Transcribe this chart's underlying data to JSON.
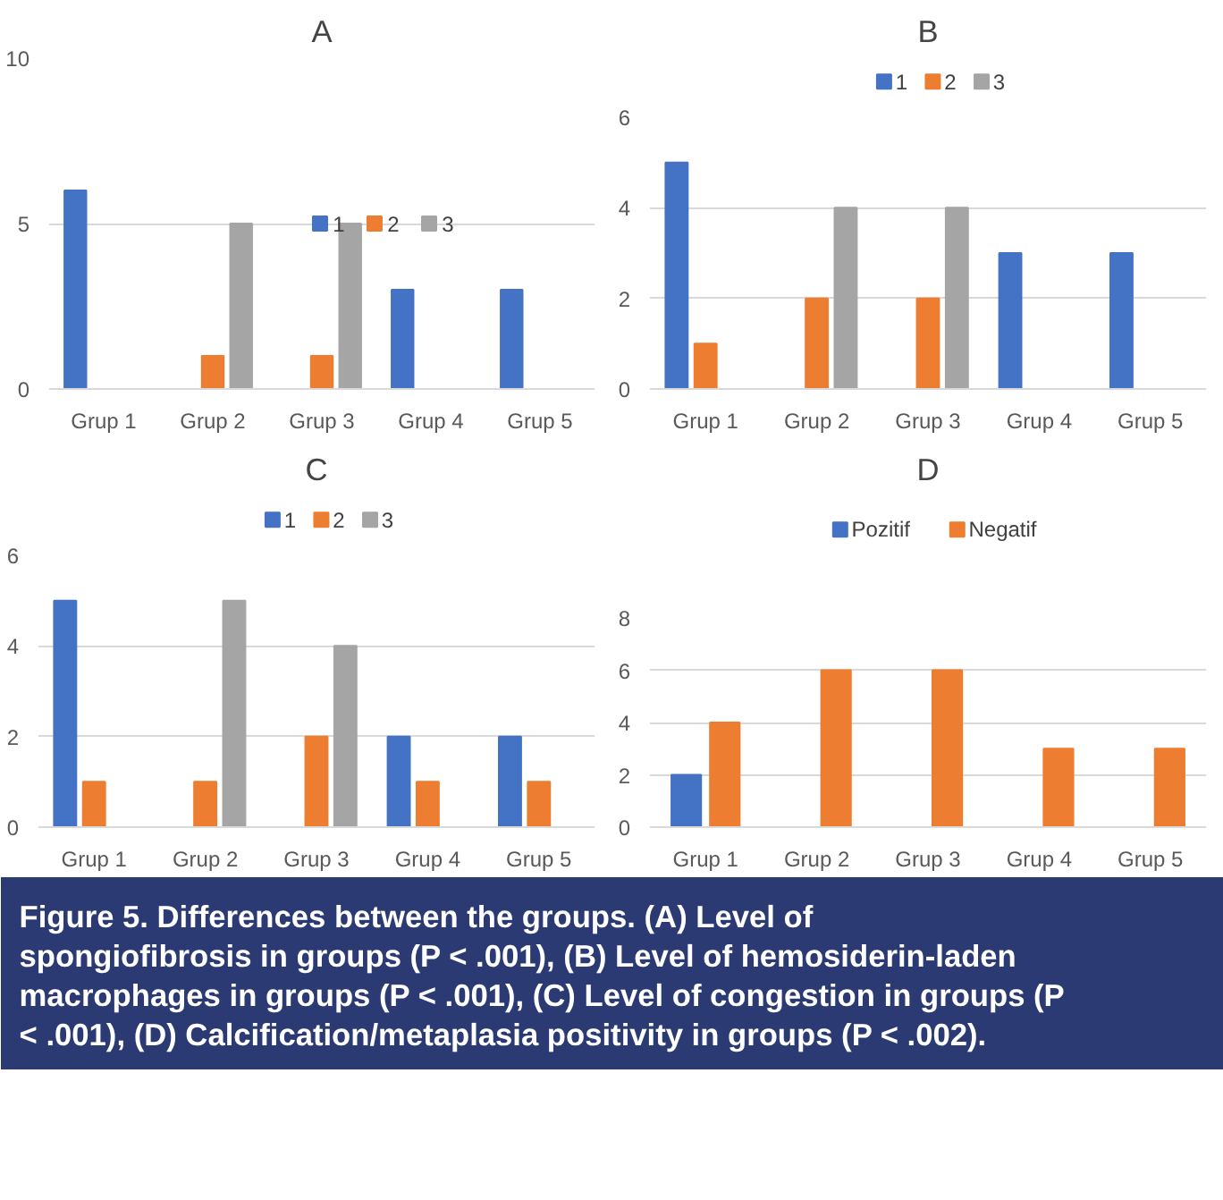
{
  "chart_data": [
    {
      "type": "bar",
      "title": "A",
      "categories": [
        "Grup 1",
        "Grup 2",
        "Grup 3",
        "Grup 4",
        "Grup 5"
      ],
      "ylim": [
        0,
        10
      ],
      "yticks": [
        0,
        5,
        10
      ],
      "grid": "y",
      "legend": "center",
      "series": [
        {
          "name": "1",
          "color": "#4472c4",
          "values": [
            6,
            0,
            0,
            3,
            3
          ]
        },
        {
          "name": "2",
          "color": "#ed7d31",
          "values": [
            0,
            1,
            1,
            0,
            0
          ]
        },
        {
          "name": "3",
          "color": "#a5a5a5",
          "values": [
            0,
            5,
            5,
            0,
            0
          ]
        }
      ]
    },
    {
      "type": "bar",
      "title": "B",
      "categories": [
        "Grup 1",
        "Grup 2",
        "Grup 3",
        "Grup 4",
        "Grup 5"
      ],
      "ylim": [
        0,
        6
      ],
      "yticks": [
        0,
        2,
        4,
        6
      ],
      "grid": "y",
      "legend": "top",
      "series": [
        {
          "name": "1",
          "color": "#4472c4",
          "values": [
            5,
            0,
            0,
            3,
            3
          ]
        },
        {
          "name": "2",
          "color": "#ed7d31",
          "values": [
            1,
            2,
            2,
            0,
            0
          ]
        },
        {
          "name": "3",
          "color": "#a5a5a5",
          "values": [
            0,
            4,
            4,
            0,
            0
          ]
        }
      ]
    },
    {
      "type": "bar",
      "title": "C",
      "categories": [
        "Grup 1",
        "Grup 2",
        "Grup 3",
        "Grup 4",
        "Grup 5"
      ],
      "ylim": [
        0,
        6
      ],
      "yticks": [
        0,
        2,
        4,
        6
      ],
      "grid": "y",
      "legend": "top",
      "series": [
        {
          "name": "1",
          "color": "#4472c4",
          "values": [
            5,
            0,
            0,
            2,
            2
          ]
        },
        {
          "name": "2",
          "color": "#ed7d31",
          "values": [
            1,
            1,
            2,
            1,
            1
          ]
        },
        {
          "name": "3",
          "color": "#a5a5a5",
          "values": [
            0,
            5,
            4,
            0,
            0
          ]
        }
      ]
    },
    {
      "type": "bar",
      "title": "D",
      "categories": [
        "Grup 1",
        "Grup 2",
        "Grup 3",
        "Grup 4",
        "Grup 5"
      ],
      "ylim": [
        0,
        8
      ],
      "yticks": [
        0,
        2,
        4,
        6,
        8
      ],
      "grid": "y",
      "legend": "top",
      "series": [
        {
          "name": "Pozitif",
          "color": "#4472c4",
          "values": [
            2,
            0,
            0,
            0,
            0
          ]
        },
        {
          "name": "Negatif",
          "color": "#ed7d31",
          "values": [
            4,
            6,
            6,
            3,
            3
          ]
        }
      ]
    },
    {
      "type": "other",
      "annotations": [
        "Figure 5.  Differences between the groups. (A) Level of spongiofibrosis in groups (P < .001), (B) Level of hemosiderin-laden macrophages in groups (P < .001), (C) Level of congestion in groups (P < .001), (D) Calcification/metaplasia positivity in groups (P < .002)."
      ]
    }
  ]
}
